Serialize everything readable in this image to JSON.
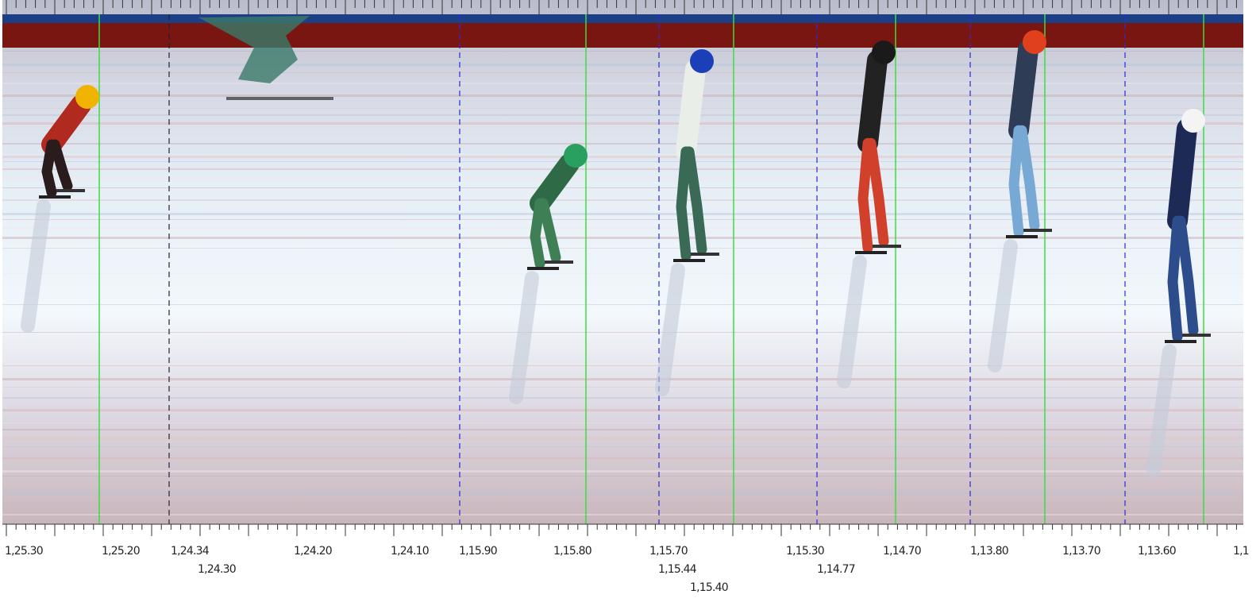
{
  "timeline": {
    "labels": [
      "1,25.30",
      "1,25.20",
      "1,24.34",
      "1,24.20",
      "1,24.10",
      "1,15.90",
      "1,15.80",
      "1,15.70",
      "1,15.30",
      "1,14.70",
      "1,13.80",
      "1,13.70",
      "1,13.60",
      "1,1"
    ],
    "labels_row2": [
      "1,24.30",
      "1,15.44",
      "1,14.77"
    ],
    "labels_row3": [
      "1,15.40"
    ]
  }
}
